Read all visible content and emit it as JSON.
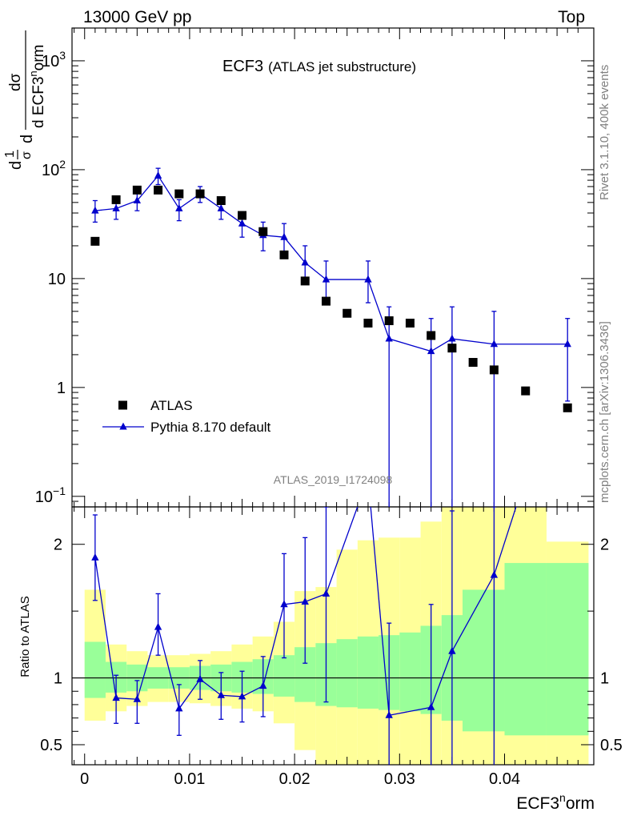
{
  "chart_data": {
    "type": "scatter",
    "header_left": "13000 GeV pp",
    "header_right": "Top",
    "title": "ECF3",
    "subtitle": "(ATLAS jet substructure)",
    "watermark": "ATLAS_2019_I1724098",
    "side_label_top": "Rivet 3.1.10,  400k events",
    "side_label_bottom": "mcplots.cern.ch [arXiv:1306.3436]",
    "xlabel_main": "ECF3",
    "xlabel_sup": "n",
    "xlabel_tail": "orm",
    "ylabel_main": {
      "numer_d": "d",
      "one": "1",
      "sigma": "σ",
      "dsigma": "dσ",
      "d_ecf": "d ECF3",
      "sup": "n",
      "orm": "orm"
    },
    "ratio_ylabel": "Ratio to ATLAS",
    "x_range": [
      -0.0012,
      0.0485
    ],
    "main_y_range_log": [
      0.08,
      2000
    ],
    "ratio_y_range": [
      0.35,
      2.28
    ],
    "x_ticks": [
      {
        "value": 0,
        "label": "0"
      },
      {
        "value": 0.01,
        "label": "0.01"
      },
      {
        "value": 0.02,
        "label": "0.02"
      },
      {
        "value": 0.03,
        "label": "0.03"
      },
      {
        "value": 0.04,
        "label": "0.04"
      }
    ],
    "main_y_ticks": [
      {
        "value": 0.1,
        "label": "10",
        "sup": "−1"
      },
      {
        "value": 1,
        "label": "1",
        "sup": ""
      },
      {
        "value": 10,
        "label": "10",
        "sup": ""
      },
      {
        "value": 100,
        "label": "10",
        "sup": "2"
      },
      {
        "value": 1000,
        "label": "10",
        "sup": "3"
      }
    ],
    "ratio_y_ticks": [
      {
        "value": 0.5,
        "label": "0.5"
      },
      {
        "value": 1,
        "label": "1"
      },
      {
        "value": 2,
        "label": "2"
      }
    ],
    "legend": [
      {
        "name": "ATLAS",
        "marker": "square",
        "color": "#000000"
      },
      {
        "name": "Pythia 8.170 default",
        "marker": "triangle",
        "color": "#0000cc"
      }
    ],
    "colors": {
      "data": "#000000",
      "mc": "#0000cc",
      "band_inner": "#99ff99",
      "band_outer": "#ffff99"
    },
    "series": [
      {
        "name": "ATLAS",
        "x": [
          0.001,
          0.003,
          0.005,
          0.007,
          0.009,
          0.011,
          0.013,
          0.015,
          0.017,
          0.019,
          0.021,
          0.023,
          0.025,
          0.027,
          0.029,
          0.031,
          0.033,
          0.035,
          0.037,
          0.039,
          0.042,
          0.046
        ],
        "y": [
          22,
          53,
          65,
          65,
          60,
          60,
          52,
          38,
          27,
          16.5,
          9.5,
          6.2,
          4.8,
          3.9,
          4.1,
          3.9,
          3.0,
          2.3,
          1.7,
          1.45,
          0.93,
          0.65
        ]
      },
      {
        "name": "Pythia 8.170 default",
        "x": [
          0.001,
          0.003,
          0.005,
          0.007,
          0.009,
          0.011,
          0.013,
          0.015,
          0.017,
          0.019,
          0.021,
          0.023,
          0.027,
          0.029,
          0.033,
          0.035,
          0.039,
          0.046
        ],
        "y": [
          42,
          44,
          52,
          88,
          44,
          60,
          44,
          32,
          25,
          24,
          14,
          9.8,
          9.8,
          2.8,
          2.15,
          2.8,
          2.5,
          2.5
        ],
        "err_low": [
          33,
          35,
          42,
          73,
          34,
          50,
          35,
          24,
          18,
          17,
          9.5,
          6.0,
          6.0,
          0.01,
          0.01,
          0.01,
          0.01,
          0.75
        ],
        "err_high": [
          52,
          53,
          62,
          103,
          53,
          70,
          54,
          41,
          33,
          32,
          20,
          14.5,
          14.5,
          5.5,
          4.3,
          5.5,
          5.0,
          4.3
        ]
      }
    ],
    "ratio": {
      "x": [
        0.001,
        0.003,
        0.005,
        0.007,
        0.009,
        0.011,
        0.013,
        0.015,
        0.017,
        0.019,
        0.021,
        0.023,
        0.027,
        0.029,
        0.033,
        0.035,
        0.039,
        0.042
      ],
      "y": [
        1.9,
        0.85,
        0.84,
        1.38,
        0.77,
        0.99,
        0.87,
        0.86,
        0.94,
        1.55,
        1.57,
        1.63,
        2.5,
        0.72,
        0.78,
        1.2,
        1.77,
        2.5
      ],
      "err_low": [
        1.58,
        0.66,
        0.66,
        1.17,
        0.57,
        0.84,
        0.69,
        0.67,
        0.71,
        1.15,
        1.11,
        0.82,
        2.5,
        0.3,
        0.3,
        0.3,
        0.3,
        2.5
      ],
      "err_high": [
        2.22,
        1.02,
        0.98,
        1.63,
        0.95,
        1.13,
        1.04,
        1.05,
        1.16,
        1.93,
        2.05,
        2.32,
        2.5,
        1.41,
        1.55,
        2.25,
        2.31,
        2.5
      ]
    },
    "bands": {
      "edges": [
        0.0,
        0.002,
        0.004,
        0.006,
        0.008,
        0.01,
        0.012,
        0.014,
        0.016,
        0.018,
        0.02,
        0.022,
        0.024,
        0.026,
        0.028,
        0.03,
        0.032,
        0.034,
        0.036,
        0.04,
        0.044,
        0.048
      ],
      "inner_low": [
        0.85,
        0.89,
        0.9,
        0.92,
        0.92,
        0.91,
        0.9,
        0.89,
        0.88,
        0.86,
        0.82,
        0.79,
        0.78,
        0.77,
        0.76,
        0.75,
        0.73,
        0.68,
        0.6,
        0.57,
        0.57
      ],
      "inner_high": [
        1.27,
        1.12,
        1.1,
        1.08,
        1.08,
        1.09,
        1.1,
        1.12,
        1.14,
        1.17,
        1.23,
        1.26,
        1.29,
        1.31,
        1.32,
        1.34,
        1.39,
        1.47,
        1.66,
        1.86,
        1.86
      ],
      "outer_low": [
        0.68,
        0.75,
        0.79,
        0.82,
        0.82,
        0.81,
        0.79,
        0.77,
        0.75,
        0.66,
        0.46,
        0.35,
        0.35,
        0.35,
        0.35,
        0.35,
        0.35,
        0.35,
        0.35,
        0.35,
        0.35
      ],
      "outer_high": [
        1.66,
        1.25,
        1.2,
        1.17,
        1.17,
        1.18,
        1.2,
        1.25,
        1.31,
        1.42,
        1.65,
        1.68,
        1.96,
        2.03,
        2.05,
        2.05,
        2.17,
        2.3,
        2.3,
        2.3,
        2.02
      ]
    }
  }
}
